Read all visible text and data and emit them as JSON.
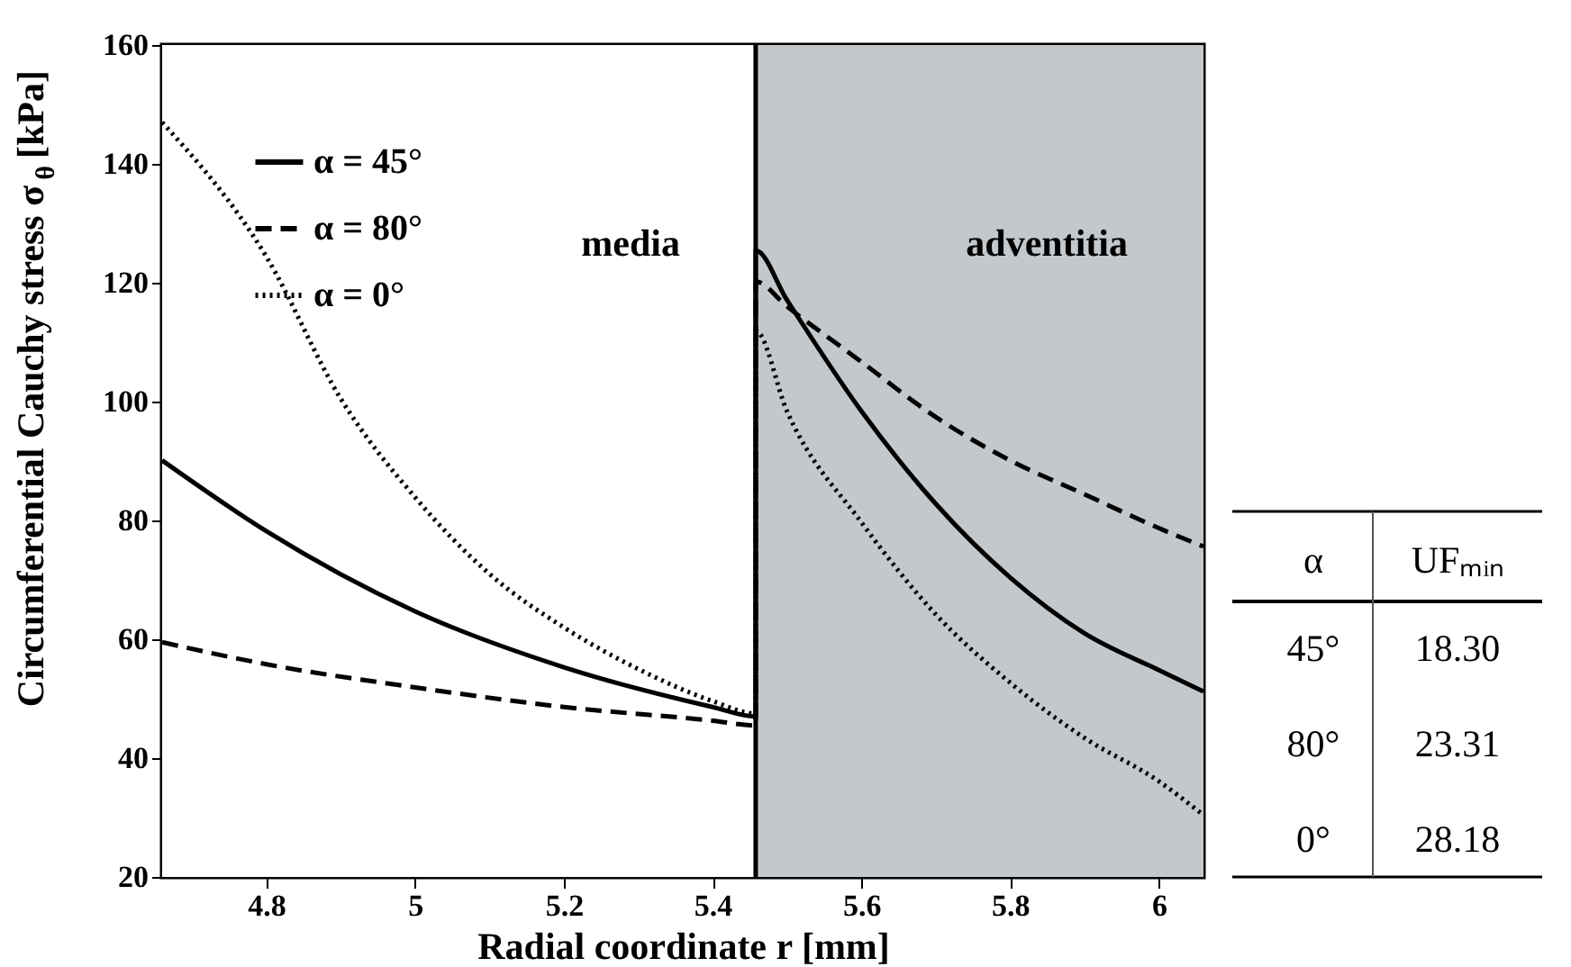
{
  "chart_data": [
    {
      "type": "line",
      "xlabel": "Radial coordinate r [mm]",
      "ylabel": "Circumferential Cauchy stress σ$_{θ}$ [kPa]",
      "xlim": [
        4.66,
        6.06
      ],
      "xticks": [
        4.8,
        5,
        5.2,
        5.4,
        5.6,
        5.8,
        6
      ],
      "ylim": [
        20,
        160
      ],
      "yticks": [
        20,
        40,
        60,
        80,
        100,
        120,
        140,
        160
      ],
      "grid": false,
      "legend": "top left",
      "series": [
        {
          "name": "α = 45°",
          "color": "#000000",
          "line_style": "solid",
          "x": [
            4.66,
            4.8,
            5.0,
            5.2,
            5.4,
            5.458,
            5.458,
            5.5,
            5.6,
            5.7,
            5.8,
            5.9,
            6.0,
            6.06
          ],
          "values": [
            90.1,
            78.2,
            64.7,
            55.3,
            48.6,
            47,
            125.4,
            117.1,
            98.4,
            82.8,
            70.4,
            61,
            54.8,
            51.2
          ]
        },
        {
          "name": "α = 80°",
          "color": "#000000",
          "line_style": "dashed",
          "x": [
            4.66,
            4.8,
            5.0,
            5.2,
            5.4,
            5.458,
            5.458,
            5.5,
            5.6,
            5.7,
            5.8,
            5.9,
            6.0,
            6.06
          ],
          "values": [
            59.5,
            55.8,
            51.9,
            48.6,
            46.3,
            45.5,
            120.2,
            116,
            106.7,
            97.4,
            90.1,
            84.4,
            78.7,
            75.6
          ]
        },
        {
          "name": "α = 0°",
          "color": "#000000",
          "line_style": "dotted",
          "x": [
            4.66,
            4.8,
            4.9,
            5.0,
            5.1,
            5.2,
            5.3,
            5.4,
            5.458,
            5.458,
            5.5,
            5.6,
            5.7,
            5.8,
            5.9,
            6.0,
            6.06
          ],
          "values": [
            147,
            124.4,
            100.5,
            83.9,
            71,
            62,
            55,
            49.6,
            47.5,
            111.9,
            98.4,
            79.7,
            64.2,
            52.7,
            43.4,
            36.1,
            30.4
          ]
        }
      ],
      "bands": [
        {
          "axis": "x",
          "from": 4.66,
          "to": 5.458,
          "label": "media",
          "color": "#ffffff"
        },
        {
          "axis": "x",
          "from": 5.458,
          "to": 6.06,
          "label": "adventitia",
          "color": "#c3c8cc"
        }
      ],
      "ref_lines": [
        {
          "axis": "x",
          "value": 5.458,
          "color": "#000000"
        }
      ]
    },
    {
      "type": "other",
      "annotations": [
        "α",
        "UFₘᵢₙ",
        "45°",
        "18.30",
        "80°",
        "23.31",
        "0°",
        "28.18"
      ]
    }
  ]
}
